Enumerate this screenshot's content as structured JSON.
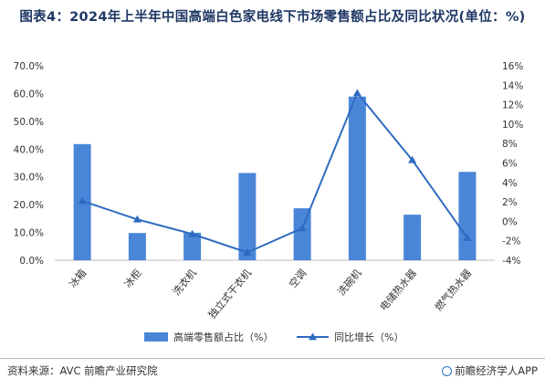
{
  "header": {
    "title": "图表4：2024年上半年中国高端白色家电线下市场零售额占比及同比状况(单位：%)"
  },
  "chart_data": {
    "type": "bar",
    "title": "图表4：2024年上半年中国高端白色家电线下市场零售额占比及同比状况(单位：%)",
    "categories": [
      "冰箱",
      "冰柜",
      "洗衣机",
      "独立式干衣机",
      "空调",
      "洗碗机",
      "电储热水器",
      "燃气热水器"
    ],
    "series": [
      {
        "name": "高端零售额占比（%）",
        "type": "bar",
        "axis": "left",
        "values": [
          41.8,
          9.8,
          9.9,
          31.4,
          18.7,
          58.9,
          16.4,
          31.8
        ]
      },
      {
        "name": "同比增长（%）",
        "type": "line",
        "axis": "right",
        "values": [
          2.1,
          0.2,
          -1.3,
          -3.2,
          -0.7,
          13.2,
          6.3,
          -1.7
        ]
      }
    ],
    "y_left": {
      "min": 0,
      "max": 70,
      "step": 10,
      "ticks": [
        "0.0%",
        "10.0%",
        "20.0%",
        "30.0%",
        "40.0%",
        "50.0%",
        "60.0%",
        "70.0%"
      ]
    },
    "y_right": {
      "min": -4,
      "max": 16,
      "step": 2,
      "ticks": [
        "-4%",
        "-2%",
        "0%",
        "2%",
        "4%",
        "6%",
        "8%",
        "10%",
        "12%",
        "14%",
        "16%"
      ]
    },
    "grid": false,
    "legend_position": "bottom",
    "colors": {
      "bar": "#4a86d8",
      "line": "#2e6bc0",
      "axis": "#bfbfbf",
      "text": "#333333"
    }
  },
  "footer": {
    "source": "资料来源：AVC 前瞻产业研究院",
    "brand": "前瞻经济学人APP"
  }
}
